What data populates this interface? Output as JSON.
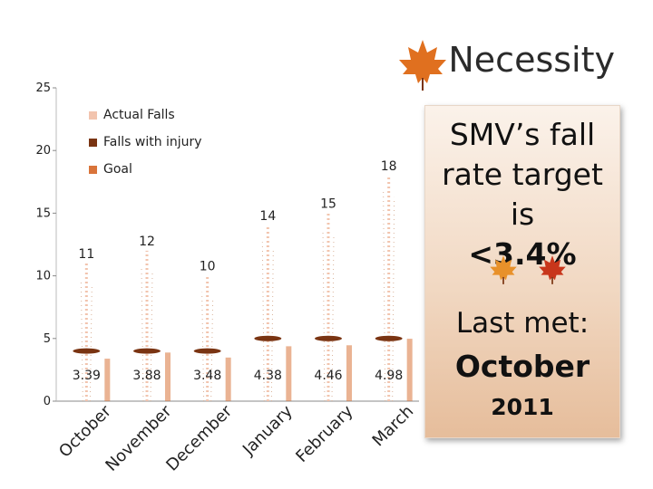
{
  "slide_title": "Necessity",
  "callout": {
    "target_line1": "SMV’s fall",
    "target_line2": "rate target is",
    "target_value": "<3.4%",
    "last_met_label": "Last met:",
    "last_met_month": "October",
    "last_met_year": "2011"
  },
  "colors": {
    "actual": "#f2c4ae",
    "injury": "#7a3412",
    "goal": "#d9743a",
    "callout_bg": "#f3dccb",
    "leaf_red": "#c8361b",
    "leaf_orange": "#e8912a"
  },
  "chart_data": {
    "type": "bar",
    "title": "",
    "xlabel": "",
    "ylabel": "",
    "ylim": [
      0,
      25
    ],
    "yticks": [
      0,
      5,
      10,
      15,
      20,
      25
    ],
    "categories": [
      "October",
      "November",
      "December",
      "January",
      "February",
      "March"
    ],
    "series": [
      {
        "name": "Actual Falls",
        "values": [
          11,
          12,
          10,
          14,
          15,
          18
        ],
        "labels": [
          "11",
          "12",
          "10",
          "14",
          "15",
          "18"
        ]
      },
      {
        "name": "Falls with injury",
        "values": [
          4,
          4,
          4,
          5,
          5,
          5
        ],
        "labels": []
      },
      {
        "name": "Goal",
        "values": [
          3.39,
          3.88,
          3.48,
          4.38,
          4.46,
          4.98
        ],
        "labels": [
          "3.39",
          "3.88",
          "3.48",
          "4.38",
          "4.46",
          "4.98"
        ]
      }
    ],
    "legend": [
      "Actual Falls",
      "Falls with injury",
      "Goal"
    ],
    "legend_position": "top-left"
  }
}
